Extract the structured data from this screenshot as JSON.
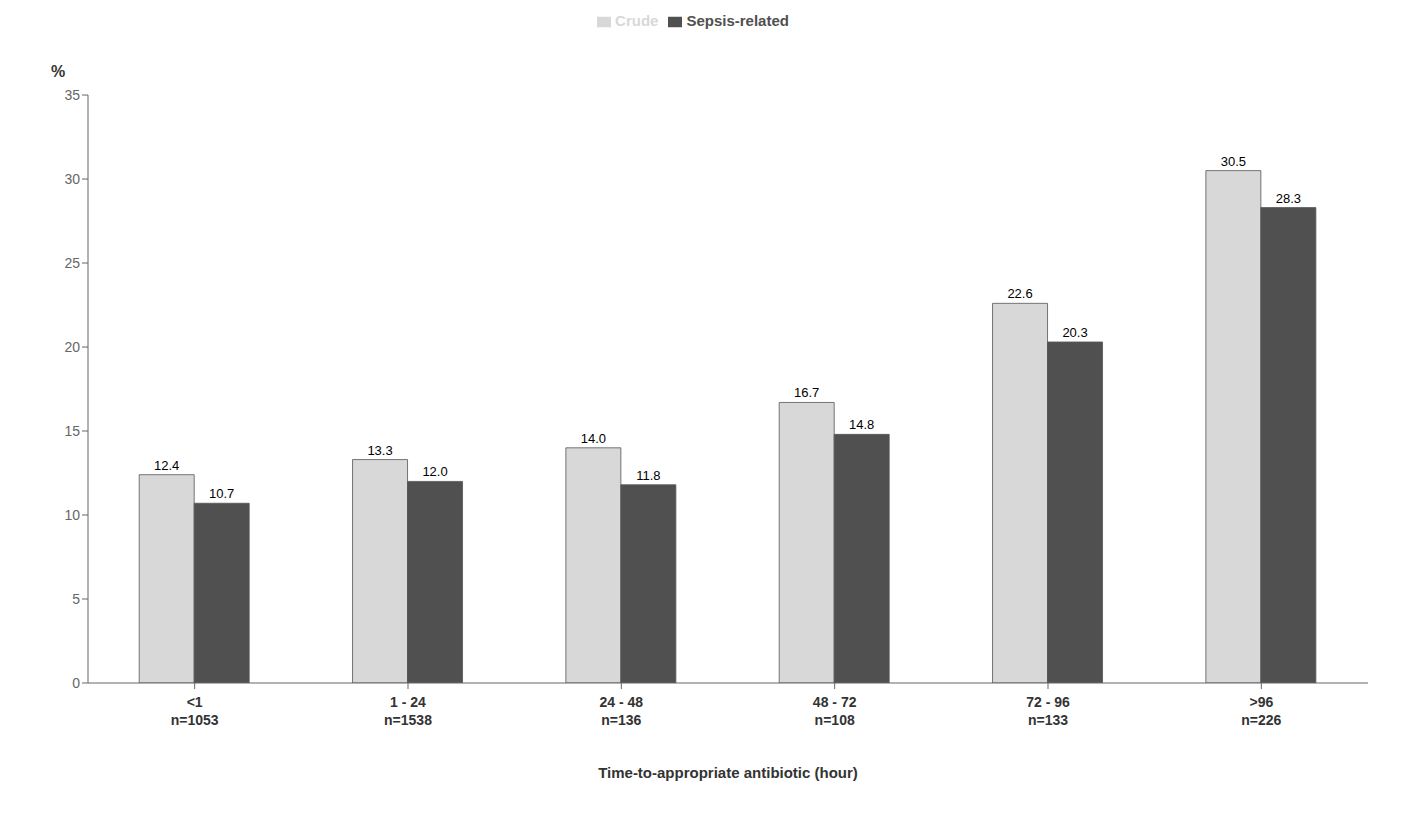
{
  "chart_data": {
    "type": "bar",
    "categories": [
      "<1\nn=1053",
      "1 - 24\nn=1538",
      "24 - 48\nn=136",
      "48 - 72\nn=108",
      "72 - 96\nn=133",
      ">96\nn=226"
    ],
    "xlabel": "Time-to-appropriate antibiotic (hour)",
    "ylabel": "%",
    "series": [
      {
        "name": "Crude",
        "color": "#d8d8d8",
        "values": [
          12.4,
          13.3,
          14.0,
          16.7,
          22.6,
          30.5
        ],
        "value_labels": [
          "12.4",
          "13.3",
          "14.0",
          "16.7",
          "22.6",
          "30.5"
        ]
      },
      {
        "name": "Sepsis-related",
        "color": "#505050",
        "values": [
          10.7,
          12.0,
          11.8,
          14.8,
          20.3,
          28.3
        ],
        "value_labels": [
          "10.7",
          "12.0",
          "11.8",
          "14.8",
          "20.3",
          "28.3"
        ]
      }
    ],
    "ylim": [
      0,
      35
    ],
    "yticks": [
      0,
      5,
      10,
      15,
      20,
      25,
      30,
      35
    ],
    "grid": false,
    "legend": "top",
    "data_labels": true
  }
}
